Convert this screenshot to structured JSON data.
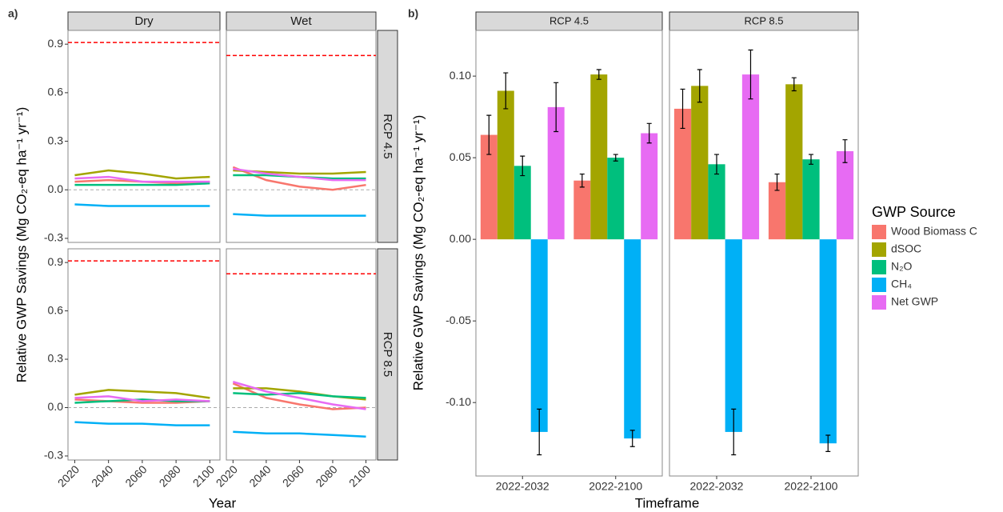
{
  "chart_data": [
    {
      "type": "line",
      "label": "a)",
      "xlabel": "Year",
      "ylabel": "Relative GWP Savings (Mg CO₂-eq ha⁻¹ yr⁻¹)",
      "xlim": [
        2016,
        2106
      ],
      "xticks": [
        2020,
        2040,
        2060,
        2080,
        2100
      ],
      "ylim": [
        -0.325,
        0.985
      ],
      "yticks": [
        -0.3,
        {
          "value": 0,
          "label": "0.0"
        },
        0.3,
        0.6,
        0.9
      ],
      "zero_line": true,
      "reference_color": "#ff0000",
      "columns": [
        "Dry",
        "Wet"
      ],
      "x": [
        2020,
        2040,
        2060,
        2080,
        2100
      ],
      "rows": [
        {
          "name": "RCP 4.5",
          "cells": [
            {
              "reference": 0.91,
              "series": [
                {
                  "color": "#F8766D",
                  "values": [
                    0.05,
                    0.06,
                    0.05,
                    0.04,
                    0.05
                  ]
                },
                {
                  "color": "#A3A500",
                  "values": [
                    0.09,
                    0.12,
                    0.1,
                    0.07,
                    0.08
                  ]
                },
                {
                  "color": "#00BF7D",
                  "values": [
                    0.03,
                    0.03,
                    0.03,
                    0.03,
                    0.04
                  ]
                },
                {
                  "color": "#00B0F6",
                  "values": [
                    -0.09,
                    -0.1,
                    -0.1,
                    -0.1,
                    -0.1
                  ]
                },
                {
                  "color": "#E76BF3",
                  "values": [
                    0.07,
                    0.08,
                    0.05,
                    0.05,
                    0.05
                  ]
                }
              ]
            },
            {
              "reference": 0.83,
              "series": [
                {
                  "color": "#F8766D",
                  "values": [
                    0.14,
                    0.06,
                    0.02,
                    0.0,
                    0.03
                  ]
                },
                {
                  "color": "#A3A500",
                  "values": [
                    0.12,
                    0.11,
                    0.1,
                    0.1,
                    0.11
                  ]
                },
                {
                  "color": "#00BF7D",
                  "values": [
                    0.09,
                    0.09,
                    0.08,
                    0.07,
                    0.07
                  ]
                },
                {
                  "color": "#00B0F6",
                  "values": [
                    -0.15,
                    -0.16,
                    -0.16,
                    -0.16,
                    -0.16
                  ]
                },
                {
                  "color": "#E76BF3",
                  "values": [
                    0.13,
                    0.1,
                    0.08,
                    0.06,
                    0.06
                  ]
                }
              ]
            }
          ]
        },
        {
          "name": "RCP 8.5",
          "cells": [
            {
              "reference": 0.91,
              "series": [
                {
                  "color": "#F8766D",
                  "values": [
                    0.05,
                    0.04,
                    0.03,
                    0.03,
                    0.04
                  ]
                },
                {
                  "color": "#A3A500",
                  "values": [
                    0.08,
                    0.11,
                    0.1,
                    0.09,
                    0.06
                  ]
                },
                {
                  "color": "#00BF7D",
                  "values": [
                    0.03,
                    0.04,
                    0.05,
                    0.04,
                    0.04
                  ]
                },
                {
                  "color": "#00B0F6",
                  "values": [
                    -0.09,
                    -0.1,
                    -0.1,
                    -0.11,
                    -0.11
                  ]
                },
                {
                  "color": "#E76BF3",
                  "values": [
                    0.06,
                    0.07,
                    0.04,
                    0.05,
                    0.04
                  ]
                }
              ]
            },
            {
              "reference": 0.83,
              "series": [
                {
                  "color": "#F8766D",
                  "values": [
                    0.15,
                    0.06,
                    0.02,
                    -0.01,
                    0.0
                  ]
                },
                {
                  "color": "#A3A500",
                  "values": [
                    0.12,
                    0.12,
                    0.1,
                    0.07,
                    0.05
                  ]
                },
                {
                  "color": "#00BF7D",
                  "values": [
                    0.09,
                    0.08,
                    0.09,
                    0.07,
                    0.06
                  ]
                },
                {
                  "color": "#00B0F6",
                  "values": [
                    -0.15,
                    -0.16,
                    -0.16,
                    -0.17,
                    -0.18
                  ]
                },
                {
                  "color": "#E76BF3",
                  "values": [
                    0.16,
                    0.1,
                    0.06,
                    0.02,
                    -0.01
                  ]
                }
              ]
            }
          ]
        }
      ]
    },
    {
      "type": "bar",
      "label": "b)",
      "xlabel": "Timeframe",
      "ylabel": "Relative GWP Savings (Mg CO₂-eq ha⁻¹ yr⁻¹)",
      "ylim": [
        -0.145,
        0.128
      ],
      "yticks": [
        {
          "value": -0.1,
          "label": "-0.10"
        },
        {
          "value": -0.05,
          "label": "-0.05"
        },
        {
          "value": 0,
          "label": "0.00"
        },
        {
          "value": 0.05,
          "label": "0.05"
        },
        {
          "value": 0.1,
          "label": "0.10"
        }
      ],
      "categories": [
        "2022-2032",
        "2022-2100"
      ],
      "legend_title": "GWP Source",
      "legend": "right",
      "series": [
        {
          "name": "Wood Biomass C",
          "color": "#F8766D"
        },
        {
          "name": "dSOC",
          "color": "#A3A500"
        },
        {
          "name": "N₂O",
          "color": "#00BF7D"
        },
        {
          "name": "CH₄",
          "color": "#00B0F6"
        },
        {
          "name": "Net GWP",
          "color": "#E76BF3"
        }
      ],
      "facets": [
        {
          "name": "RCP 4.5",
          "series": [
            {
              "values": [
                0.064,
                0.036
              ],
              "errors": [
                0.012,
                0.004
              ]
            },
            {
              "values": [
                0.091,
                0.101
              ],
              "errors": [
                0.011,
                0.003
              ]
            },
            {
              "values": [
                0.045,
                0.05
              ],
              "errors": [
                0.006,
                0.002
              ]
            },
            {
              "values": [
                -0.118,
                -0.122
              ],
              "errors": [
                0.014,
                0.005
              ]
            },
            {
              "values": [
                0.081,
                0.065
              ],
              "errors": [
                0.015,
                0.006
              ]
            }
          ]
        },
        {
          "name": "RCP 8.5",
          "series": [
            {
              "values": [
                0.08,
                0.035
              ],
              "errors": [
                0.012,
                0.005
              ]
            },
            {
              "values": [
                0.094,
                0.095
              ],
              "errors": [
                0.01,
                0.004
              ]
            },
            {
              "values": [
                0.046,
                0.049
              ],
              "errors": [
                0.006,
                0.003
              ]
            },
            {
              "values": [
                -0.118,
                -0.125
              ],
              "errors": [
                0.014,
                0.005
              ]
            },
            {
              "values": [
                0.101,
                0.054
              ],
              "errors": [
                0.015,
                0.007
              ]
            }
          ]
        }
      ]
    }
  ]
}
